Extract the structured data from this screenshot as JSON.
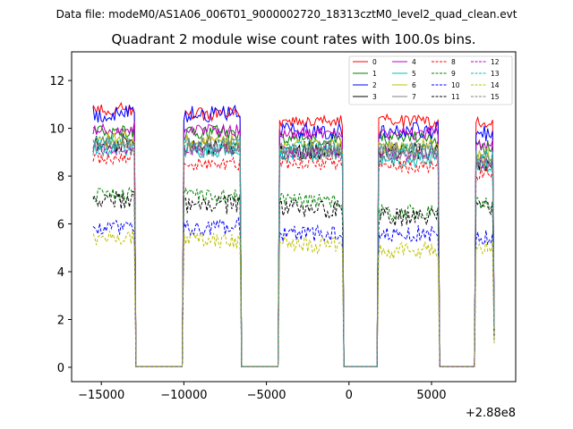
{
  "chart_data": {
    "type": "line",
    "suptitle": "Data file: modeM0/AS1A06_006T01_9000002720_18313cztM0_level2_quad_clean.evt",
    "title": "Quadrant 2 module wise count rates with 100.0s bins.",
    "xlabel": "",
    "ylabel": "",
    "x_offset_label": "+2.88e8",
    "xlim": [
      -16800,
      10100
    ],
    "ylim": [
      -0.6,
      13.2
    ],
    "xticks": [
      -15000,
      -10000,
      -5000,
      0,
      5000
    ],
    "xtick_labels": [
      "−15000",
      "−10000",
      "−5000",
      "0",
      "5000"
    ],
    "yticks": [
      0,
      2,
      4,
      6,
      8,
      10,
      12
    ],
    "ytick_labels": [
      "0",
      "2",
      "4",
      "6",
      "8",
      "10",
      "12"
    ],
    "bin_seconds": 100,
    "x_start": -15500,
    "x_end": 8800,
    "gaps": [
      [
        -12900,
        -10050
      ],
      [
        -6500,
        -4250
      ],
      [
        -300,
        1700
      ],
      [
        5450,
        7650
      ]
    ],
    "legend": {
      "placement": "upper-right",
      "columns": 4
    },
    "series": [
      {
        "name": "0",
        "color": "#ff0000",
        "dash": "solid",
        "levels": [
          10.8,
          10.6,
          10.3,
          10.3,
          10.3
        ]
      },
      {
        "name": "1",
        "color": "#008000",
        "dash": "solid",
        "levels": [
          9.8,
          9.8,
          9.6,
          9.6,
          9.2
        ]
      },
      {
        "name": "2",
        "color": "#0000ff",
        "dash": "solid",
        "levels": [
          10.6,
          10.6,
          9.9,
          9.9,
          9.8
        ]
      },
      {
        "name": "3",
        "color": "#000000",
        "dash": "solid",
        "levels": [
          9.4,
          9.3,
          9.1,
          9.0,
          8.6
        ]
      },
      {
        "name": "4",
        "color": "#bf00bf",
        "dash": "solid",
        "levels": [
          10.0,
          9.9,
          9.8,
          9.8,
          9.4
        ]
      },
      {
        "name": "5",
        "color": "#00bfbf",
        "dash": "solid",
        "levels": [
          9.1,
          9.1,
          8.9,
          8.7,
          8.4
        ]
      },
      {
        "name": "6",
        "color": "#bfbf00",
        "dash": "solid",
        "levels": [
          9.5,
          9.4,
          9.2,
          9.2,
          8.8
        ]
      },
      {
        "name": "7",
        "color": "#808080",
        "dash": "solid",
        "levels": [
          9.3,
          9.3,
          9.1,
          9.0,
          8.7
        ]
      },
      {
        "name": "8",
        "color": "#ff0000",
        "dash": "dashed",
        "levels": [
          8.7,
          8.5,
          8.5,
          8.4,
          8.1
        ]
      },
      {
        "name": "9",
        "color": "#008000",
        "dash": "dashed",
        "levels": [
          7.2,
          7.2,
          7.0,
          6.5,
          6.8
        ]
      },
      {
        "name": "10",
        "color": "#0000ff",
        "dash": "dashed",
        "levels": [
          5.9,
          5.9,
          5.6,
          5.6,
          5.4
        ]
      },
      {
        "name": "11",
        "color": "#000000",
        "dash": "dashed",
        "levels": [
          7.0,
          6.8,
          6.6,
          6.3,
          6.6
        ]
      },
      {
        "name": "12",
        "color": "#bf00bf",
        "dash": "dashed",
        "levels": [
          9.1,
          9.1,
          9.0,
          8.9,
          8.5
        ]
      },
      {
        "name": "13",
        "color": "#00bfbf",
        "dash": "dashed",
        "levels": [
          9.4,
          9.3,
          9.2,
          9.1,
          8.8
        ]
      },
      {
        "name": "14",
        "color": "#bfbf00",
        "dash": "dashed",
        "levels": [
          5.4,
          5.3,
          5.1,
          4.9,
          5.0
        ]
      },
      {
        "name": "15",
        "color": "#808080",
        "dash": "dashed",
        "levels": [
          9.2,
          9.2,
          9.0,
          9.0,
          8.6
        ]
      }
    ]
  }
}
